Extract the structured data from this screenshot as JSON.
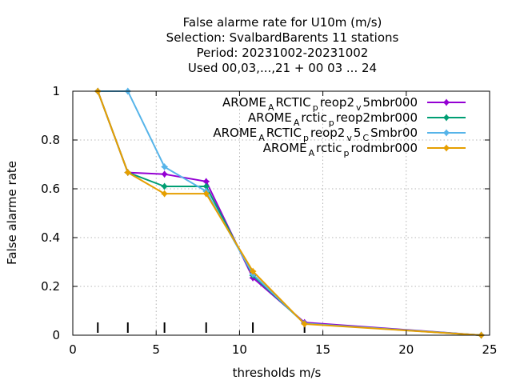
{
  "chart_data": {
    "type": "line",
    "title": [
      "False alarme rate  for U10m (m/s)",
      "Selection: SvalbardBarents     11 stations",
      "Period: 20231002-20231002",
      "Used  00,03,...,21  + 00 03 ... 24"
    ],
    "xlabel": "thresholds m/s",
    "ylabel": "False alarme rate",
    "xlim": [
      0,
      25
    ],
    "ylim": [
      0,
      1
    ],
    "xticks": [
      0,
      5,
      10,
      15,
      20,
      25
    ],
    "yticks": [
      0,
      0.2,
      0.4,
      0.6,
      0.8,
      1
    ],
    "ytick_labels": [
      "0",
      "0.2",
      "0.4",
      "0.6",
      "0.8",
      "1"
    ],
    "grid": true,
    "legend_position": "top-right",
    "threshold_markers": [
      1.5,
      3.3,
      5.5,
      8,
      10.8,
      13.9,
      24.5
    ],
    "series": [
      {
        "name": [
          [
            "AROME",
            ""
          ],
          [
            "A",
            "sub"
          ],
          [
            "RCTIC",
            ""
          ],
          [
            "p",
            "sub"
          ],
          [
            "reop2",
            ""
          ],
          [
            "v",
            "sub"
          ],
          [
            "5mbr000",
            ""
          ]
        ],
        "color": "#9400d3",
        "x": [
          1.5,
          3.3,
          5.5,
          8,
          10.8,
          13.9,
          24.5
        ],
        "y": [
          1.0,
          0.667,
          0.66,
          0.63,
          0.235,
          0.052,
          0.0
        ]
      },
      {
        "name": [
          [
            "AROME",
            ""
          ],
          [
            "A",
            "sub"
          ],
          [
            "rctic",
            ""
          ],
          [
            "p",
            "sub"
          ],
          [
            "reop2mbr000",
            ""
          ]
        ],
        "color": "#009e73",
        "x": [
          1.5,
          3.3,
          5.5,
          8,
          10.8,
          13.9,
          24.5
        ],
        "y": [
          1.0,
          0.667,
          0.61,
          0.61,
          0.245,
          0.048,
          0.0
        ]
      },
      {
        "name": [
          [
            "AROME",
            ""
          ],
          [
            "A",
            "sub"
          ],
          [
            "RCTIC",
            ""
          ],
          [
            "p",
            "sub"
          ],
          [
            "reop2",
            ""
          ],
          [
            "v",
            "sub"
          ],
          [
            "5",
            ""
          ],
          [
            "C",
            "sub"
          ],
          [
            "Smbr00",
            ""
          ]
        ],
        "color": "#56b4e9",
        "x": [
          1.5,
          3.3,
          5.5,
          8,
          10.8,
          13.9,
          24.5
        ],
        "y": [
          1.0,
          1.0,
          0.69,
          0.59,
          0.25,
          0.048,
          0.0
        ]
      },
      {
        "name": [
          [
            "AROME",
            ""
          ],
          [
            "A",
            "sub"
          ],
          [
            "rctic",
            ""
          ],
          [
            "p",
            "sub"
          ],
          [
            "rodmbr000",
            ""
          ]
        ],
        "color": "#e69f00",
        "x": [
          1.5,
          3.3,
          5.5,
          8,
          10.8,
          13.9,
          24.5
        ],
        "y": [
          1.0,
          0.667,
          0.58,
          0.58,
          0.262,
          0.046,
          0.0
        ]
      }
    ]
  }
}
